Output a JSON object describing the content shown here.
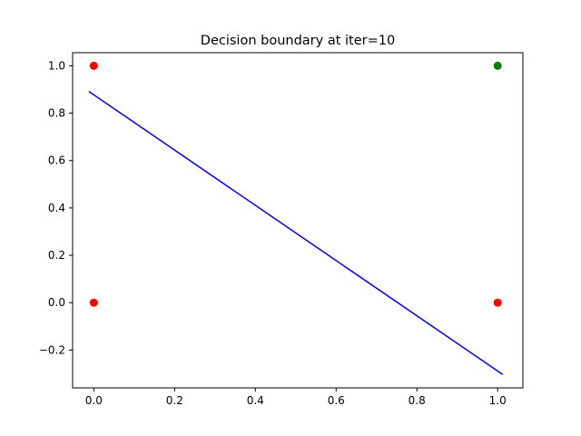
{
  "chart_data": {
    "type": "scatter",
    "title": "Decision boundary at iter=10",
    "xlabel": "",
    "ylabel": "",
    "xlim": [
      -0.0525,
      1.0625
    ],
    "ylim": [
      -0.3595,
      1.0553
    ],
    "x_ticks": [
      0.0,
      0.2,
      0.4,
      0.6,
      0.8,
      1.0
    ],
    "x_tick_labels": [
      "0.0",
      "0.2",
      "0.4",
      "0.6",
      "0.8",
      "1.0"
    ],
    "y_ticks": [
      -0.2,
      0.0,
      0.2,
      0.4,
      0.6,
      0.8,
      1.0
    ],
    "y_tick_labels": [
      "−0.2",
      "0.0",
      "0.2",
      "0.4",
      "0.6",
      "0.8",
      "1.0"
    ],
    "grid": false,
    "points": [
      {
        "x": 0,
        "y": 0,
        "color": "#ff0000"
      },
      {
        "x": 0,
        "y": 1,
        "color": "#ff0000"
      },
      {
        "x": 1,
        "y": 0,
        "color": "#ff0000"
      },
      {
        "x": 1,
        "y": 1,
        "color": "#008000"
      }
    ],
    "line": {
      "color": "#0000ff",
      "x": [
        -0.0125,
        1.0125
      ],
      "y": [
        0.892,
        -0.303
      ]
    }
  }
}
